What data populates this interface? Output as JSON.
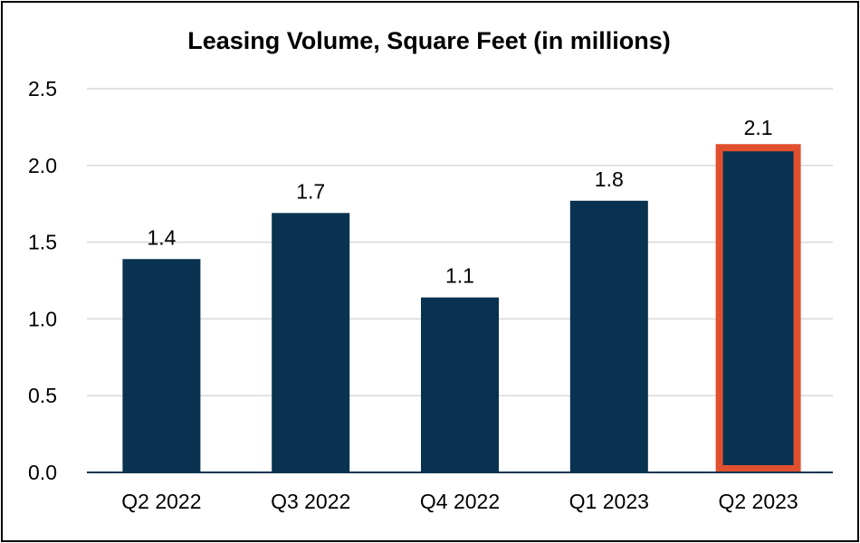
{
  "chart_data": {
    "type": "bar",
    "title": "Leasing Volume, Square Feet (in millions)",
    "categories": [
      "Q2 2022",
      "Q3 2022",
      "Q4 2022",
      "Q1 2023",
      "Q2 2023"
    ],
    "values": [
      1.39,
      1.69,
      1.14,
      1.77,
      2.08
    ],
    "data_labels": [
      "1.4",
      "1.7",
      "1.1",
      "1.8",
      "2.1"
    ],
    "highlighted_index": 4,
    "ylim": [
      0,
      2.5
    ],
    "yticks": [
      "0.0",
      "0.5",
      "1.0",
      "1.5",
      "2.0",
      "2.5"
    ],
    "grid": true,
    "xlabel": "",
    "ylabel": ""
  },
  "colors": {
    "bar": "#08324f",
    "highlight": "#e0502e",
    "grid": "#d9d9d9"
  }
}
